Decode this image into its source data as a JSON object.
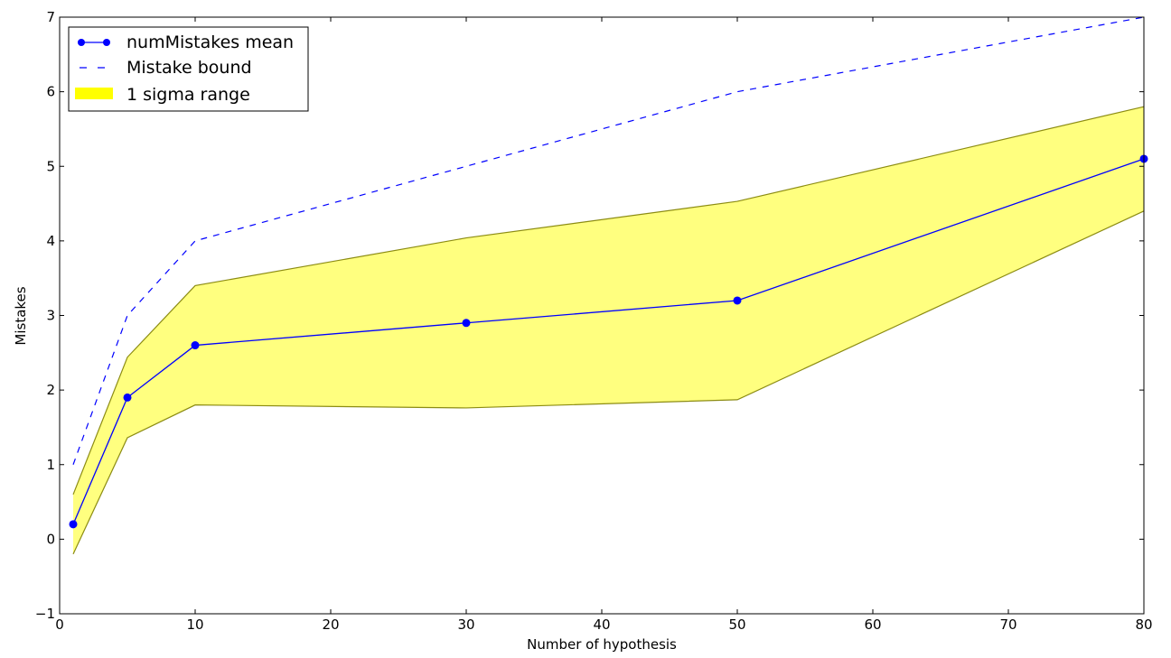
{
  "chart_data": {
    "type": "line",
    "xlabel": "Number of hypothesis",
    "ylabel": "Mistakes",
    "xlim": [
      0,
      80
    ],
    "ylim": [
      -1,
      7
    ],
    "xticks": [
      0,
      10,
      20,
      30,
      40,
      50,
      60,
      70,
      80
    ],
    "yticks": [
      -1,
      0,
      1,
      2,
      3,
      4,
      5,
      6,
      7
    ],
    "xtick_labels": [
      "0",
      "10",
      "20",
      "30",
      "40",
      "50",
      "60",
      "70",
      "80"
    ],
    "ytick_labels": [
      "−1",
      "0",
      "1",
      "2",
      "3",
      "4",
      "5",
      "6",
      "7"
    ],
    "grid": false,
    "legend_position": "top-left",
    "x": [
      1,
      5,
      10,
      30,
      50,
      80
    ],
    "series": [
      {
        "name": "numMistakes mean",
        "style": "solid line with circle markers",
        "color": "#0000ff",
        "values": [
          0.2,
          1.9,
          2.6,
          2.9,
          3.2,
          5.1
        ]
      },
      {
        "name": "Mistake bound",
        "style": "dashed line",
        "color": "#0000ff",
        "values": [
          1.0,
          3.0,
          4.0,
          5.0,
          6.0,
          7.0
        ]
      },
      {
        "name": "1 sigma range",
        "style": "filled band",
        "color": "#ffff00",
        "lower": [
          -0.2,
          1.36,
          1.8,
          1.76,
          1.87,
          4.4
        ],
        "upper": [
          0.6,
          2.44,
          3.4,
          4.04,
          4.53,
          5.8
        ]
      }
    ]
  }
}
